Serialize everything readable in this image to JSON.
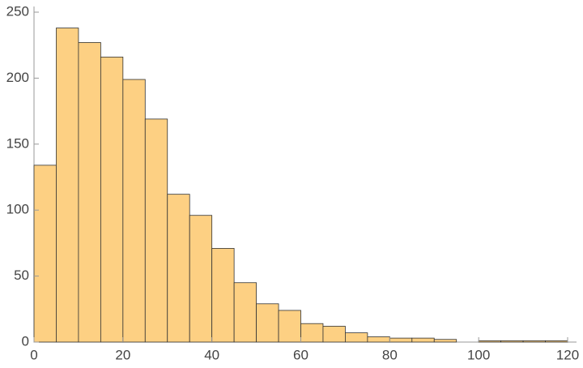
{
  "chart_data": {
    "type": "histogram",
    "bins": [
      0,
      5,
      10,
      15,
      20,
      25,
      30,
      35,
      40,
      45,
      50,
      55,
      60,
      65,
      70,
      75,
      80,
      85,
      90,
      95,
      100,
      105,
      110,
      115,
      120
    ],
    "values": [
      134,
      238,
      227,
      216,
      199,
      169,
      112,
      96,
      71,
      45,
      29,
      24,
      14,
      12,
      7,
      4,
      3,
      3,
      2,
      0,
      1,
      1,
      1,
      1
    ],
    "color": "#fdd083",
    "xlim": [
      0,
      120
    ],
    "xticks": [
      0,
      20,
      40,
      60,
      80,
      100,
      120
    ],
    "ylim": [
      0,
      250
    ],
    "yticks": [
      0,
      50,
      100,
      150,
      200,
      250
    ]
  }
}
